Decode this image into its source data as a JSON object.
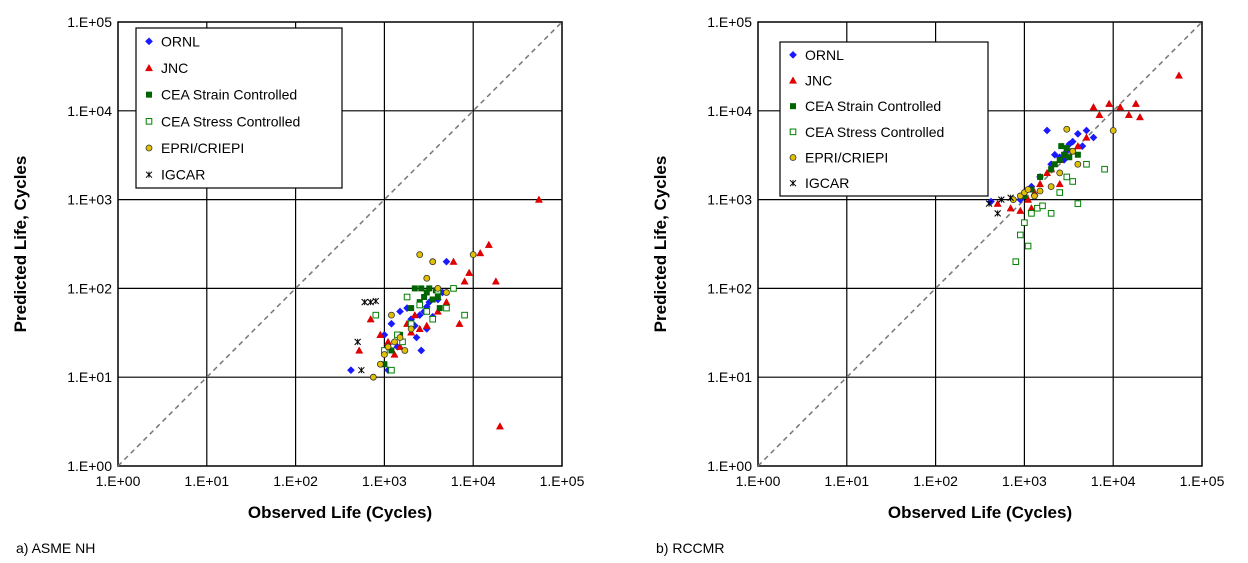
{
  "chart_data": [
    {
      "type": "scatter",
      "caption": "a) ASME NH",
      "xlabel": "Observed Life (Cycles)",
      "ylabel": "Predicted Life, Cycles",
      "xlim": [
        1,
        100000
      ],
      "ylim": [
        1,
        100000
      ],
      "scale": "log",
      "grid": true,
      "legend_position": "top-left",
      "x_ticks": [
        "1.E+00",
        "1.E+01",
        "1.E+02",
        "1.E+03",
        "1.E+04",
        "1.E+05"
      ],
      "y_ticks": [
        "1.E+00",
        "1.E+01",
        "1.E+02",
        "1.E+03",
        "1.E+04",
        "1.E+05"
      ],
      "reference_line": "y = x",
      "series": [
        {
          "name": "ORNL",
          "marker": "diamond",
          "color": "#1a1aff",
          "points": [
            [
              420,
              12
            ],
            [
              1000,
              30
            ],
            [
              1200,
              40
            ],
            [
              1500,
              55
            ],
            [
              1800,
              60
            ],
            [
              2000,
              45
            ],
            [
              2200,
              38
            ],
            [
              2500,
              50
            ],
            [
              2800,
              55
            ],
            [
              3000,
              62
            ],
            [
              3200,
              70
            ],
            [
              3500,
              48
            ],
            [
              4000,
              75
            ],
            [
              4500,
              90
            ],
            [
              5000,
              200
            ],
            [
              2600,
              20
            ],
            [
              3000,
              35
            ],
            [
              1100,
              12
            ],
            [
              1400,
              22
            ],
            [
              2300,
              28
            ]
          ]
        },
        {
          "name": "JNC",
          "marker": "triangle",
          "color": "#e00000",
          "points": [
            [
              520,
              20
            ],
            [
              700,
              45
            ],
            [
              900,
              30
            ],
            [
              1100,
              25
            ],
            [
              1300,
              18
            ],
            [
              1500,
              22
            ],
            [
              1800,
              40
            ],
            [
              2000,
              32
            ],
            [
              2500,
              35
            ],
            [
              3000,
              38
            ],
            [
              4000,
              55
            ],
            [
              5000,
              70
            ],
            [
              6000,
              200
            ],
            [
              8000,
              120
            ],
            [
              9000,
              150
            ],
            [
              12000,
              250
            ],
            [
              15000,
              310
            ],
            [
              18000,
              120
            ],
            [
              20000,
              2.8
            ],
            [
              55000,
              1000
            ],
            [
              7000,
              40
            ],
            [
              2200,
              50
            ]
          ]
        },
        {
          "name": "CEA Strain Controlled",
          "marker": "filled-square",
          "color": "#006400",
          "points": [
            [
              1000,
              14
            ],
            [
              1200,
              20
            ],
            [
              1500,
              30
            ],
            [
              2000,
              60
            ],
            [
              2200,
              100
            ],
            [
              2500,
              70
            ],
            [
              2800,
              80
            ],
            [
              3000,
              90
            ],
            [
              3200,
              100
            ],
            [
              3500,
              75
            ],
            [
              4000,
              80
            ],
            [
              4200,
              60
            ],
            [
              2600,
              100
            ],
            [
              3800,
              95
            ]
          ]
        },
        {
          "name": "CEA Stress Controlled",
          "marker": "open-square",
          "color": "#008000",
          "points": [
            [
              800,
              50
            ],
            [
              1000,
              20
            ],
            [
              1200,
              12
            ],
            [
              1400,
              30
            ],
            [
              1600,
              25
            ],
            [
              2000,
              40
            ],
            [
              2500,
              65
            ],
            [
              3000,
              55
            ],
            [
              3500,
              45
            ],
            [
              4000,
              95
            ],
            [
              5000,
              60
            ],
            [
              6000,
              100
            ],
            [
              8000,
              50
            ],
            [
              1800,
              80
            ]
          ]
        },
        {
          "name": "EPRI/CRIEPI",
          "marker": "circle",
          "color": "#e0c000",
          "points": [
            [
              750,
              10
            ],
            [
              900,
              14
            ],
            [
              1000,
              18
            ],
            [
              1100,
              22
            ],
            [
              1300,
              25
            ],
            [
              1500,
              28
            ],
            [
              1700,
              20
            ],
            [
              2000,
              35
            ],
            [
              2500,
              240
            ],
            [
              3000,
              130
            ],
            [
              3500,
              200
            ],
            [
              4000,
              100
            ],
            [
              5000,
              90
            ],
            [
              10000,
              240
            ],
            [
              1200,
              50
            ]
          ]
        },
        {
          "name": "IGCAR",
          "marker": "asterisk",
          "color": "#000000",
          "points": [
            [
              600,
              70
            ],
            [
              700,
              70
            ],
            [
              800,
              72
            ],
            [
              500,
              25
            ],
            [
              550,
              12
            ]
          ]
        }
      ]
    },
    {
      "type": "scatter",
      "caption": "b) RCCMR",
      "xlabel": "Observed Life (Cycles)",
      "ylabel": "Predicted Life, Cycles",
      "xlim": [
        1,
        100000
      ],
      "ylim": [
        1,
        100000
      ],
      "scale": "log",
      "grid": true,
      "legend_position": "top-left",
      "x_ticks": [
        "1.E+00",
        "1.E+01",
        "1.E+02",
        "1.E+03",
        "1.E+04",
        "1.E+05"
      ],
      "y_ticks": [
        "1.E+00",
        "1.E+01",
        "1.E+02",
        "1.E+03",
        "1.E+04",
        "1.E+05"
      ],
      "reference_line": "y = x",
      "series": [
        {
          "name": "ORNL",
          "marker": "diamond",
          "color": "#1a1aff",
          "points": [
            [
              420,
              950
            ],
            [
              900,
              1000
            ],
            [
              1200,
              1400
            ],
            [
              1500,
              1800
            ],
            [
              2000,
              2500
            ],
            [
              2500,
              3000
            ],
            [
              3000,
              3500
            ],
            [
              3500,
              4500
            ],
            [
              4000,
              5500
            ],
            [
              4500,
              4000
            ],
            [
              5000,
              6000
            ],
            [
              2200,
              3200
            ],
            [
              2800,
              2800
            ],
            [
              3200,
              4200
            ],
            [
              1800,
              6000
            ],
            [
              6000,
              5000
            ]
          ]
        },
        {
          "name": "JNC",
          "marker": "triangle",
          "color": "#e00000",
          "points": [
            [
              500,
              900
            ],
            [
              700,
              800
            ],
            [
              900,
              750
            ],
            [
              1100,
              1000
            ],
            [
              1300,
              1200
            ],
            [
              1500,
              1500
            ],
            [
              1800,
              2000
            ],
            [
              2000,
              2200
            ],
            [
              2500,
              2800
            ],
            [
              3000,
              3200
            ],
            [
              4000,
              4000
            ],
            [
              5000,
              5000
            ],
            [
              6000,
              11000
            ],
            [
              7000,
              9000
            ],
            [
              9000,
              12000
            ],
            [
              12000,
              11000
            ],
            [
              15000,
              9000
            ],
            [
              18000,
              12000
            ],
            [
              20000,
              8500
            ],
            [
              55000,
              25000
            ],
            [
              1200,
              800
            ],
            [
              2500,
              1500
            ]
          ]
        },
        {
          "name": "CEA Strain Controlled",
          "marker": "filled-square",
          "color": "#006400",
          "points": [
            [
              1000,
              1100
            ],
            [
              1200,
              1300
            ],
            [
              1500,
              1800
            ],
            [
              2000,
              2200
            ],
            [
              2200,
              2500
            ],
            [
              2500,
              2800
            ],
            [
              2800,
              3200
            ],
            [
              3000,
              3800
            ],
            [
              3200,
              3000
            ],
            [
              3500,
              3500
            ],
            [
              4000,
              3200
            ],
            [
              2600,
              4000
            ]
          ]
        },
        {
          "name": "CEA Stress Controlled",
          "marker": "open-square",
          "color": "#008000",
          "points": [
            [
              800,
              200
            ],
            [
              900,
              400
            ],
            [
              1000,
              550
            ],
            [
              1200,
              700
            ],
            [
              1400,
              800
            ],
            [
              1600,
              850
            ],
            [
              2000,
              700
            ],
            [
              2500,
              1200
            ],
            [
              3000,
              1800
            ],
            [
              3500,
              1600
            ],
            [
              4000,
              900
            ],
            [
              5000,
              2500
            ],
            [
              8000,
              2200
            ],
            [
              1100,
              300
            ]
          ]
        },
        {
          "name": "EPRI/CRIEPI",
          "marker": "circle",
          "color": "#e0c000",
          "points": [
            [
              750,
              1000
            ],
            [
              900,
              1100
            ],
            [
              1000,
              1200
            ],
            [
              1100,
              1300
            ],
            [
              1300,
              1100
            ],
            [
              1500,
              1250
            ],
            [
              2000,
              1400
            ],
            [
              2500,
              2000
            ],
            [
              3000,
              6200
            ],
            [
              3500,
              3500
            ],
            [
              4000,
              2500
            ],
            [
              10000,
              6000
            ]
          ]
        },
        {
          "name": "IGCAR",
          "marker": "asterisk",
          "color": "#000000",
          "points": [
            [
              400,
              900
            ],
            [
              500,
              700
            ],
            [
              550,
              1000
            ],
            [
              700,
              1050
            ]
          ]
        }
      ]
    }
  ]
}
